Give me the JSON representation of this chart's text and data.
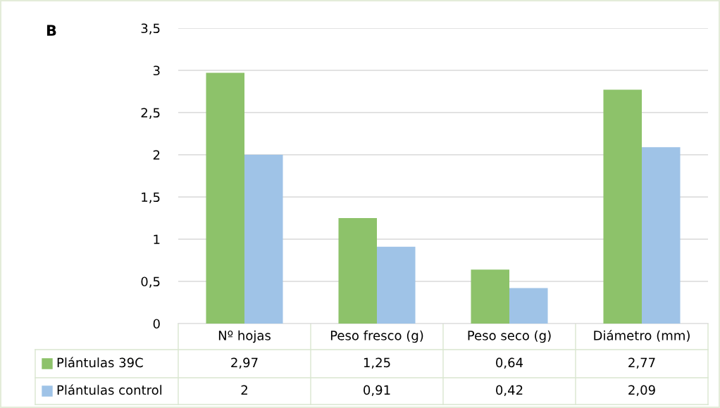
{
  "chart_data": {
    "type": "bar",
    "categories": [
      "Nº hojas",
      "Peso fresco (g)",
      "Peso seco (g)",
      "Diámetro (mm)"
    ],
    "series": [
      {
        "name": "Plántulas 39C",
        "color": "#8dc26a",
        "values": [
          2.97,
          1.25,
          0.64,
          2.77
        ],
        "value_labels": [
          "2,97",
          "1,25",
          "0,64",
          "2,77"
        ]
      },
      {
        "name": "Plántulas control",
        "color": "#9fc3e7",
        "values": [
          2,
          0.91,
          0.42,
          2.09
        ],
        "value_labels": [
          "2",
          "0,91",
          "0,42",
          "2,09"
        ]
      }
    ],
    "ylim": [
      0,
      3.5
    ],
    "yticks": [
      0,
      {
        "value": 0.5,
        "label": "0,5"
      },
      1,
      {
        "value": 1.5,
        "label": "1,5"
      },
      2,
      {
        "value": 2.5,
        "label": "2,5"
      },
      3,
      {
        "value": 3.5,
        "label": "3,5"
      }
    ],
    "grid": "y",
    "legend": "bottom left",
    "annotations": [
      "B"
    ]
  }
}
